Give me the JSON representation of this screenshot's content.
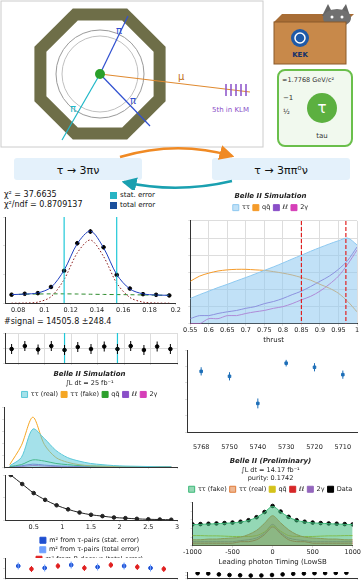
{
  "diagram": {
    "event_display": {
      "track_labels": [
        "π",
        "π",
        "π",
        "μ"
      ],
      "note": "5th in KLM"
    },
    "lab": "KEK",
    "particle_card": {
      "symbol": "τ",
      "mass": "≈1.7768 GeV/c²",
      "charge": "−1",
      "spin": "½",
      "name": "tau"
    },
    "decays": [
      "τ → 3πν",
      "τ → 3ππ⁰ν"
    ]
  },
  "chart_data": [
    {
      "type": "line",
      "annotations": [
        "χ² = 37.6635",
        "χ²/ndf = 0.8709137"
      ],
      "result": "#signal = 14505.8 ±248.4",
      "legend_items": [
        {
          "name": "stat. error",
          "color": "#27b4c4"
        },
        {
          "name": "total error",
          "color": "#1a4f9c"
        }
      ],
      "x": [
        0.075,
        0.085,
        0.095,
        0.105,
        0.115,
        0.125,
        0.135,
        0.145,
        0.155,
        0.165,
        0.175,
        0.185,
        0.195
      ],
      "xlim": [
        0.07,
        0.2
      ],
      "xticks": [
        0.08,
        0.1,
        0.12,
        0.14,
        0.16,
        0.18,
        0.2
      ],
      "ylim": [
        0,
        1200
      ],
      "yticks": [
        0,
        400,
        800,
        1200
      ],
      "tick_labels": "x",
      "grid": false,
      "window": [
        0.115,
        0.155
      ],
      "series": [
        {
          "color": "#1f3fbf",
          "values": [
            120,
            127,
            143,
            220,
            460,
            828,
            1005,
            772,
            400,
            198,
            130,
            114,
            110
          ]
        },
        {
          "color": "#8b1a1a",
          "line_style": "dotted",
          "values": [
            0,
            2,
            15,
            90,
            330,
            700,
            880,
            650,
            280,
            80,
            15,
            2,
            0
          ]
        },
        {
          "color": "#2e8b2e",
          "line_style": "dashed",
          "values": [
            120,
            125,
            128,
            130,
            130,
            128,
            125,
            122,
            120,
            118,
            115,
            112,
            110
          ]
        },
        {
          "color": "#000000",
          "marker": "circle",
          "line_style": "none",
          "values": [
            118,
            131,
            140,
            226,
            452,
            835,
            998,
            779,
            395,
            204,
            126,
            117,
            108
          ],
          "errors": [
            11,
            11,
            12,
            15,
            21,
            29,
            32,
            28,
            20,
            14,
            11,
            11,
            10
          ]
        }
      ]
    },
    {
      "type": "scatter",
      "x": [
        0.075,
        0.085,
        0.095,
        0.105,
        0.115,
        0.125,
        0.135,
        0.145,
        0.155,
        0.165,
        0.175,
        0.185,
        0.195
      ],
      "xlim": [
        0.07,
        0.2
      ],
      "xticks": [
        0.08,
        0.1,
        0.12,
        0.14,
        0.16,
        0.18,
        0.2
      ],
      "ylim": [
        -3,
        3
      ],
      "yticks": [
        -3,
        0,
        3
      ],
      "tick_labels": false,
      "grid": true,
      "window": [
        0.115,
        0.155
      ],
      "series": [
        {
          "color": "#000000",
          "marker": "circle",
          "values": [
            -0.2,
            0.4,
            -0.3,
            0.4,
            -0.4,
            0.2,
            -0.2,
            0.3,
            -0.2,
            0.4,
            -0.4,
            0.3,
            -0.2
          ],
          "errors": [
            1,
            1,
            1,
            1,
            1,
            1,
            1,
            1,
            1,
            1,
            1,
            1,
            1
          ]
        }
      ]
    },
    {
      "type": "line",
      "title": "Belle II Simulation",
      "xlabel": "thrust",
      "legend": "top",
      "log": "y",
      "x": [
        0.55,
        0.575,
        0.6,
        0.625,
        0.65,
        0.675,
        0.7,
        0.725,
        0.75,
        0.775,
        0.8,
        0.825,
        0.85,
        0.875,
        0.9,
        0.925,
        0.95,
        0.975,
        1.0
      ],
      "xlim": [
        0.55,
        1
      ],
      "xticks": [
        0.55,
        0.6,
        0.65,
        0.7,
        0.75,
        0.8,
        0.85,
        0.9,
        0.95,
        1
      ],
      "ylim": [
        1,
        1000000
      ],
      "yticks": [
        1,
        10,
        100,
        1000,
        10000,
        100000,
        1000000
      ],
      "tick_labels": "x",
      "grid": true,
      "cuts": [
        0.85,
        0.97
      ],
      "series": [
        {
          "name": "ττ",
          "color": "#8ec9f0",
          "type": "area",
          "values": [
            30,
            50,
            80,
            130,
            200,
            320,
            500,
            800,
            1300,
            2100,
            3500,
            6000,
            10000,
            17000,
            28000,
            45000,
            70000,
            100000,
            40000
          ]
        },
        {
          "name": "qq̄",
          "color": "#f59b2a",
          "values": [
            300,
            600,
            900,
            1200,
            1400,
            1500,
            1500,
            1400,
            1300,
            1100,
            900,
            700,
            500,
            350,
            200,
            120,
            60,
            20,
            5
          ]
        },
        {
          "name": "ℓℓ",
          "color": "#8a4fc8",
          "values": [
            2,
            3,
            3,
            4,
            5,
            6,
            8,
            10,
            15,
            20,
            30,
            50,
            80,
            150,
            300,
            600,
            1500,
            5000,
            30000
          ]
        },
        {
          "name": "2γ",
          "color": "#d63fb8",
          "values": [
            1,
            1,
            2,
            2,
            3,
            3,
            4,
            5,
            6,
            8,
            10,
            15,
            25,
            40,
            80,
            200,
            600,
            3000,
            20000
          ]
        }
      ]
    },
    {
      "type": "scatter",
      "categories": [
        "5768",
        "5750",
        "5740",
        "5730",
        "5720",
        "5710"
      ],
      "ylim": [
        0,
        10
      ],
      "yticks": [
        0,
        2,
        4,
        6,
        8,
        10
      ],
      "tick_labels": "x",
      "grid": false,
      "series": [
        {
          "color": "#1e6fb8",
          "marker": "square",
          "values": [
            7.4,
            6.8,
            3.5,
            8.4,
            7.9,
            7.0
          ],
          "errors": [
            0.5,
            0.5,
            0.6,
            0.4,
            0.5,
            0.5
          ]
        }
      ]
    },
    {
      "type": "line",
      "title": "Belle II Simulation",
      "subtitle": "∫L dt = 25 fb⁻¹",
      "legend": "top",
      "x": [
        0.1,
        0.3,
        0.5,
        0.7,
        0.9,
        1.1,
        1.3,
        1.5,
        1.7,
        1.9,
        2.1,
        2.3,
        2.5,
        2.7,
        2.9
      ],
      "xlim": [
        0,
        3
      ],
      "xticks": [
        0,
        0.5,
        1,
        1.5,
        2,
        2.5,
        3
      ],
      "ylim": [
        0,
        250
      ],
      "yticks": [
        0,
        50,
        100,
        150,
        200,
        250
      ],
      "tick_labels": false,
      "grid": false,
      "series": [
        {
          "name": "ττ (real)",
          "color": "#5bc8d8",
          "type": "area",
          "values": [
            5,
            40,
            160,
            120,
            70,
            40,
            25,
            15,
            10,
            6,
            4,
            3,
            2,
            1,
            1
          ]
        },
        {
          "name": "ττ (fake)",
          "color": "#f5a623",
          "values": [
            10,
            90,
            210,
            95,
            40,
            20,
            10,
            5,
            3,
            2,
            1,
            1,
            1,
            0,
            0
          ]
        },
        {
          "name": "qq̄",
          "color": "#2ca02c",
          "values": [
            2,
            10,
            30,
            25,
            15,
            10,
            6,
            4,
            3,
            2,
            1,
            1,
            0,
            0,
            0
          ]
        },
        {
          "name": "ℓℓ",
          "color": "#8a4fc8",
          "values": [
            1,
            5,
            12,
            8,
            5,
            3,
            2,
            1,
            1,
            0,
            0,
            0,
            0,
            0,
            0
          ]
        },
        {
          "name": "2γ",
          "color": "#d63fb8",
          "values": [
            0,
            2,
            6,
            4,
            2,
            1,
            1,
            0,
            0,
            0,
            0,
            0,
            0,
            0,
            0
          ]
        }
      ]
    },
    {
      "type": "line",
      "x": [
        0.1,
        0.3,
        0.5,
        0.7,
        0.9,
        1.1,
        1.3,
        1.5,
        1.7,
        1.9,
        2.1,
        2.3,
        2.5,
        2.7,
        2.9
      ],
      "xlim": [
        0,
        3
      ],
      "xticks": [
        0.5,
        1,
        1.5,
        2,
        2.5,
        3
      ],
      "ylim": [
        0,
        1
      ],
      "yticks": [
        0,
        0.5,
        1
      ],
      "tick_labels": "x",
      "grid": false,
      "series": [
        {
          "color": "#222222",
          "marker": "circle",
          "values": [
            1,
            0.8,
            0.6,
            0.45,
            0.33,
            0.24,
            0.17,
            0.12,
            0.09,
            0.06,
            0.045,
            0.03,
            0.02,
            0.015,
            0.01
          ]
        }
      ]
    },
    {
      "type": "line",
      "title": "Belle II (Preliminary)",
      "subtitle": "∫L dt = 14.17 fb⁻¹",
      "annotations": [
        "purity: 0.1742"
      ],
      "xlabel": "Leading photon Timing (LowSB",
      "legend": "top",
      "log": "y",
      "x": [
        -1000,
        -900,
        -800,
        -700,
        -600,
        -500,
        -400,
        -300,
        -200,
        -100,
        0,
        100,
        200,
        300,
        400,
        500,
        600,
        700,
        800,
        900,
        1000
      ],
      "xlim": [
        -1000,
        1000
      ],
      "xticks": [
        -1000,
        -500,
        0,
        500,
        1000
      ],
      "ylim": [
        1,
        100000
      ],
      "yticks": [
        1,
        10,
        100,
        1000,
        10000,
        100000
      ],
      "tick_labels": "x",
      "grid": false,
      "series": [
        {
          "name": "ττ (fake)",
          "color": "#3cb878",
          "type": "area",
          "values": [
            280,
            300,
            330,
            360,
            400,
            450,
            560,
            850,
            1900,
            7500,
            36000,
            8400,
            2100,
            860,
            570,
            450,
            400,
            360,
            330,
            300,
            280
          ]
        },
        {
          "name": "ττ (real)",
          "color": "#e07b39",
          "type": "area",
          "values": [
            5,
            5,
            6,
            6,
            7,
            8,
            10,
            20,
            60,
            400,
            3000,
            450,
            70,
            20,
            10,
            8,
            7,
            6,
            6,
            5,
            5
          ]
        },
        {
          "name": "qq̄",
          "color": "#d4c21a",
          "values": [
            15,
            15,
            14,
            14,
            13,
            12,
            12,
            12,
            15,
            40,
            200,
            50,
            15,
            12,
            12,
            12,
            13,
            14,
            14,
            15,
            15
          ]
        },
        {
          "name": "ℓℓ",
          "color": "#d62728",
          "values": [
            2,
            2,
            2,
            2,
            2,
            2,
            3,
            3,
            5,
            20,
            150,
            25,
            5,
            3,
            3,
            2,
            2,
            2,
            2,
            2,
            2
          ]
        },
        {
          "name": "2γ",
          "color": "#9467bd",
          "values": [
            3,
            3,
            3,
            3,
            3,
            3,
            4,
            5,
            8,
            30,
            300,
            35,
            8,
            5,
            4,
            3,
            3,
            3,
            3,
            3,
            3
          ]
        },
        {
          "name": "Data",
          "color": "#000000",
          "marker": "circle",
          "line_style": "none",
          "values": [
            300,
            320,
            350,
            380,
            420,
            480,
            600,
            900,
            2000,
            8000,
            40000,
            9000,
            2200,
            900,
            600,
            480,
            420,
            380,
            350,
            320,
            300
          ]
        }
      ]
    },
    {
      "type": "scatter",
      "legend": "top",
      "x": [
        1,
        2,
        3,
        4,
        5,
        6,
        7,
        8,
        9,
        10,
        11,
        12
      ],
      "xlim": [
        0,
        13
      ],
      "xticks": [
        0,
        13
      ],
      "ylim": [
        0,
        2
      ],
      "yticks": [
        0,
        1,
        2
      ],
      "tick_labels": false,
      "grid": false,
      "series": [
        {
          "name": "m² from τ-pairs (stat. error)",
          "color": "#1f4fd0",
          "marker": "circle",
          "values": [
            1.2,
            null,
            1.0,
            null,
            1.3,
            null,
            1.1,
            null,
            1.2,
            null,
            1.0,
            null
          ],
          "errors": [
            0.15,
            null,
            0.15,
            null,
            0.15,
            null,
            0.15,
            null,
            0.15,
            null,
            0.15,
            null
          ]
        },
        {
          "name": "m² from τ-pairs (total error)",
          "color": "#6fa0ff",
          "marker": "circle",
          "values": [
            1.2,
            null,
            1.0,
            null,
            1.3,
            null,
            1.1,
            null,
            1.2,
            null,
            1.0,
            null
          ],
          "errors": [
            0.35,
            null,
            0.35,
            null,
            0.35,
            null,
            0.35,
            null,
            0.35,
            null,
            0.35,
            null
          ]
        },
        {
          "name": "m² from B-decays (total error)",
          "color": "#e02020",
          "marker": "circle",
          "values": [
            null,
            0.9,
            null,
            1.2,
            null,
            1.0,
            null,
            1.3,
            null,
            1.1,
            null,
            0.9
          ],
          "errors": [
            null,
            0.3,
            null,
            0.3,
            null,
            0.3,
            null,
            0.3,
            null,
            0.3,
            null,
            0.3
          ]
        }
      ]
    },
    {
      "type": "scatter",
      "x": [
        1,
        2,
        3,
        4,
        5,
        6,
        7,
        8,
        9,
        10,
        11,
        12,
        13,
        14,
        15
      ],
      "xlim": [
        0,
        16
      ],
      "xticks": [
        0,
        4,
        8,
        12,
        16
      ],
      "ylim": [
        0,
        10
      ],
      "yticks": [
        0,
        5,
        10
      ],
      "tick_labels": false,
      "grid": false,
      "series": [
        {
          "color": "#000000",
          "marker": "circle",
          "values": [
            8,
            7.5,
            6,
            5,
            4.5,
            4,
            4.2,
            5,
            6,
            7,
            7.5,
            8,
            8.2,
            8.5,
            8.7
          ]
        }
      ]
    }
  ]
}
